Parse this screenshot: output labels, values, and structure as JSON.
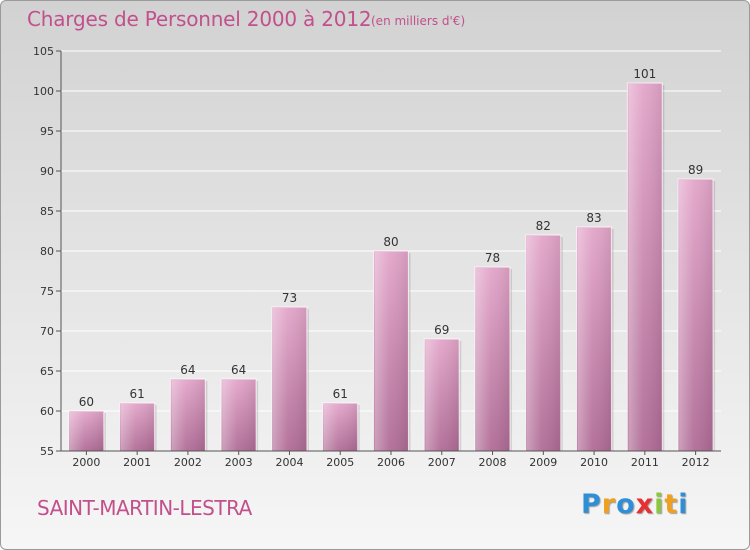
{
  "title": "Charges de Personnel 2000 à 2012",
  "subtitle": "(en milliers d'€)",
  "place_name": "SAINT-MARTIN-LESTRA",
  "logo": {
    "letters": [
      "P",
      "r",
      "o",
      "x",
      "i",
      "t",
      "i"
    ],
    "colors": [
      "#2e8fd6",
      "#f0a020",
      "#2e8fd6",
      "#e83030",
      "#8cc63f",
      "#f0a020",
      "#2e8fd6"
    ]
  },
  "colors": {
    "title": "#c2508c",
    "bar_top": "#e3a6ca",
    "bar_bottom": "#b06c96",
    "gridline": "#ffffff"
  },
  "chart_data": {
    "type": "bar",
    "title": "Charges de Personnel 2000 à 2012",
    "subtitle": "(en milliers d'€)",
    "categories": [
      "2000",
      "2001",
      "2002",
      "2003",
      "2004",
      "2005",
      "2006",
      "2007",
      "2008",
      "2009",
      "2010",
      "2011",
      "2012"
    ],
    "values": [
      60,
      61,
      64,
      64,
      73,
      61,
      80,
      69,
      78,
      82,
      83,
      101,
      89
    ],
    "ylim": [
      55,
      105
    ],
    "yticks": [
      55,
      60,
      65,
      70,
      75,
      80,
      85,
      90,
      95,
      100,
      105
    ],
    "grid": true,
    "legend": "none",
    "xlabel": "",
    "ylabel": ""
  }
}
